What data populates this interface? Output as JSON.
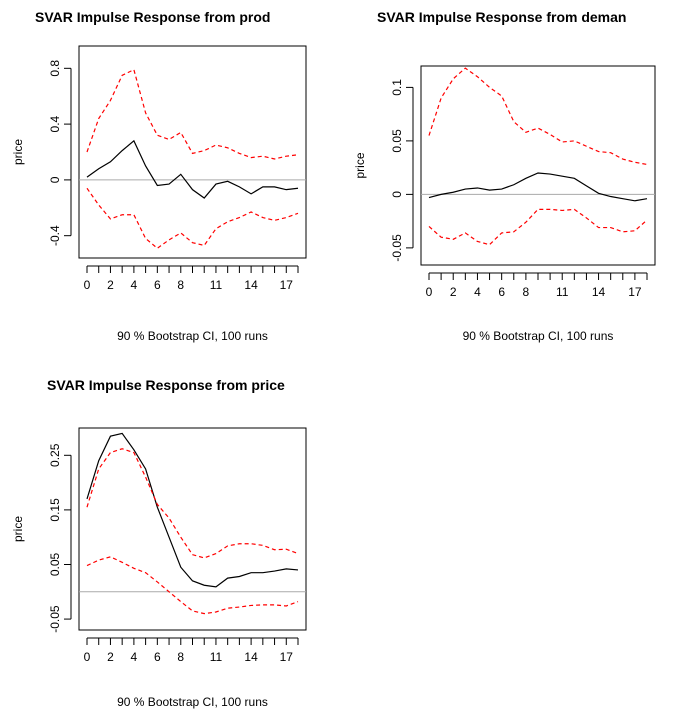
{
  "chart_data": [
    {
      "type": "line",
      "title": "SVAR Impulse Response from prod",
      "y_label": "price",
      "x_label": "90 % Bootstrap CI,  100 runs",
      "categories": [
        "0",
        null,
        "2",
        null,
        "4",
        null,
        "6",
        null,
        "8",
        null,
        null,
        "11",
        null,
        null,
        "14",
        null,
        null,
        "17",
        null
      ],
      "ylim": [
        -0.56,
        0.96
      ],
      "yticks": [
        -0.4,
        0.0,
        0.4,
        0.8
      ],
      "series": [
        {
          "color": "#000000",
          "dash": false,
          "values": [
            0.02,
            0.08,
            0.13,
            0.21,
            0.28,
            0.1,
            -0.04,
            -0.03,
            0.04,
            -0.07,
            -0.13,
            -0.03,
            -0.01,
            -0.05,
            -0.1,
            -0.05,
            -0.05,
            -0.07,
            -0.06
          ]
        },
        {
          "color": "#ff0000",
          "dash": true,
          "values": [
            0.2,
            0.44,
            0.57,
            0.75,
            0.79,
            0.48,
            0.32,
            0.29,
            0.34,
            0.19,
            0.21,
            0.25,
            0.23,
            0.19,
            0.16,
            0.17,
            0.15,
            0.17,
            0.18
          ]
        },
        {
          "color": "#ff0000",
          "dash": true,
          "values": [
            -0.06,
            -0.18,
            -0.28,
            -0.25,
            -0.25,
            -0.42,
            -0.49,
            -0.43,
            -0.38,
            -0.45,
            -0.47,
            -0.35,
            -0.3,
            -0.27,
            -0.23,
            -0.27,
            -0.29,
            -0.27,
            -0.24
          ]
        }
      ]
    },
    {
      "type": "line",
      "title": "SVAR Impulse Response from deman",
      "y_label": "price",
      "x_label": "90 % Bootstrap CI,  100 runs",
      "categories": [
        "0",
        null,
        "2",
        null,
        "4",
        null,
        "6",
        null,
        "8",
        null,
        null,
        "11",
        null,
        null,
        "14",
        null,
        null,
        "17",
        null
      ],
      "ylim": [
        -0.066,
        0.12
      ],
      "yticks": [
        -0.05,
        0.0,
        0.05,
        0.1
      ],
      "series": [
        {
          "color": "#000000",
          "dash": false,
          "values": [
            -0.003,
            0.0,
            0.002,
            0.005,
            0.006,
            0.004,
            0.005,
            0.009,
            0.015,
            0.02,
            0.019,
            0.017,
            0.015,
            0.008,
            0.001,
            -0.002,
            -0.004,
            -0.006,
            -0.004
          ]
        },
        {
          "color": "#ff0000",
          "dash": true,
          "values": [
            0.055,
            0.09,
            0.108,
            0.118,
            0.11,
            0.1,
            0.092,
            0.068,
            0.058,
            0.062,
            0.056,
            0.049,
            0.05,
            0.045,
            0.04,
            0.039,
            0.033,
            0.03,
            0.028
          ]
        },
        {
          "color": "#ff0000",
          "dash": true,
          "values": [
            -0.03,
            -0.04,
            -0.042,
            -0.036,
            -0.044,
            -0.047,
            -0.036,
            -0.035,
            -0.026,
            -0.014,
            -0.014,
            -0.015,
            -0.014,
            -0.022,
            -0.031,
            -0.031,
            -0.035,
            -0.034,
            -0.024
          ]
        }
      ]
    },
    {
      "type": "line",
      "title": "SVAR Impulse Response from price",
      "y_label": "price",
      "x_label": "90 % Bootstrap CI,  100 runs",
      "categories": [
        "0",
        null,
        "2",
        null,
        "4",
        null,
        "6",
        null,
        "8",
        null,
        null,
        "11",
        null,
        null,
        "14",
        null,
        null,
        "17",
        null
      ],
      "ylim": [
        -0.07,
        0.3
      ],
      "yticks": [
        -0.05,
        0.05,
        0.15,
        0.25
      ],
      "series": [
        {
          "color": "#000000",
          "dash": false,
          "values": [
            0.17,
            0.24,
            0.285,
            0.29,
            0.26,
            0.225,
            0.155,
            0.1,
            0.045,
            0.02,
            0.012,
            0.009,
            0.025,
            0.028,
            0.035,
            0.035,
            0.038,
            0.042,
            0.04
          ]
        },
        {
          "color": "#ff0000",
          "dash": true,
          "values": [
            0.155,
            0.225,
            0.255,
            0.262,
            0.255,
            0.21,
            0.16,
            0.135,
            0.1,
            0.068,
            0.062,
            0.07,
            0.084,
            0.088,
            0.088,
            0.085,
            0.077,
            0.078,
            0.07
          ]
        },
        {
          "color": "#ff0000",
          "dash": true,
          "values": [
            0.048,
            0.058,
            0.064,
            0.054,
            0.043,
            0.035,
            0.018,
            0.0,
            -0.018,
            -0.035,
            -0.04,
            -0.037,
            -0.03,
            -0.028,
            -0.025,
            -0.024,
            -0.024,
            -0.026,
            -0.018
          ]
        }
      ]
    }
  ]
}
